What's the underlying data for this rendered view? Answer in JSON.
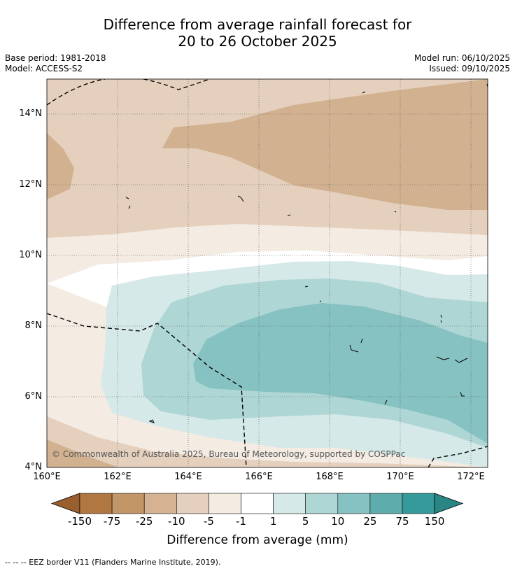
{
  "title": {
    "line1": "Difference from average rainfall forecast for",
    "line2": "20 to 26 October 2025"
  },
  "meta_left": {
    "base_period": "Base period: 1981-2018",
    "model": "Model: ACCESS-S2"
  },
  "meta_right": {
    "model_run": "Model run: 06/10/2025",
    "issued": "Issued: 09/10/2025"
  },
  "map": {
    "lat_labels": [
      "14°N",
      "12°N",
      "10°N",
      "8°N",
      "6°N",
      "4°N"
    ],
    "lon_labels": [
      "160°E",
      "162°E",
      "164°E",
      "166°E",
      "168°E",
      "170°E",
      "172°E"
    ],
    "copyright": "© Commonwealth of Australia 2025, Bureau of Meteorology, supported by COSPPac"
  },
  "colorbar": {
    "ticks": [
      "-150",
      "-75",
      "-25",
      "-10",
      "-5",
      "-1",
      "1",
      "5",
      "10",
      "25",
      "75",
      "150"
    ],
    "colors": [
      "#9a5f2e",
      "#b07840",
      "#c39668",
      "#d4b292",
      "#e4d0bd",
      "#f4ebe3",
      "#ffffff",
      "#d5e9e8",
      "#aed6d5",
      "#86c2c1",
      "#5eadac",
      "#36999a",
      "#2a8585"
    ],
    "label": "Difference from average (mm)"
  },
  "legend_note": "--  --  -- EEZ border V11 (Flanders Marine Institute, 2019)."
}
